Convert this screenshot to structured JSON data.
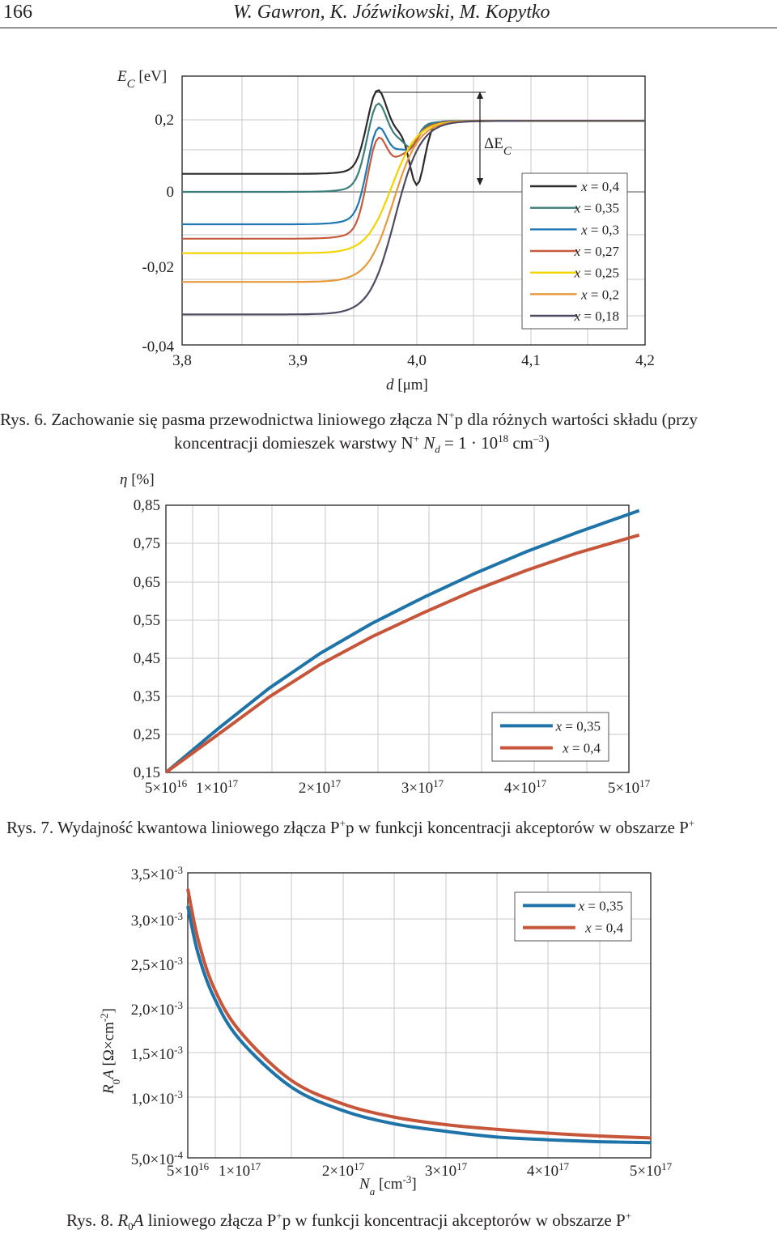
{
  "header": {
    "page_number": "166",
    "authors": "W. Gawron, K. Jóźwikowski, M. Kopytko"
  },
  "figure6": {
    "y_label": "E_C [eV]",
    "y_label_main": "E",
    "y_label_sub": "C",
    "y_label_unit": " [eV]",
    "x_label_main": "d",
    "x_label_unit": " [μm]",
    "delta_label_main": "ΔE",
    "delta_label_sub": "C",
    "caption_lead": "Rys. 6.",
    "caption_line1": "Zachowanie się pasma przewodnictwa liniowego złącza N",
    "caption_sup1": "+",
    "caption_line1b": "p dla różnych wartości składu (przy",
    "caption_line2": "koncentracji domieszek warstwy N",
    "caption_sup2": "+",
    "caption_line2b": " N",
    "caption_sub_d": "d",
    "caption_line2c": " = 1 · 10",
    "caption_sup3": "18",
    "caption_line2d": " cm",
    "caption_sup4": "–3",
    "caption_line2e": ")"
  },
  "figure7": {
    "y_label_main": "η",
    "y_label_unit": " [%]",
    "caption_lead": "Rys. 7.",
    "caption_text": "Wydajność kwantowa liniowego złącza P",
    "caption_sup1": "+",
    "caption_text2": "p w funkcji koncentracji akceptorów w obszarze P",
    "caption_sup2": "+"
  },
  "figure8": {
    "y_label": "R0A [Ω×cm-2]",
    "x_label": "Na [cm-3]",
    "caption_lead": "Rys. 8.",
    "caption_R": "R",
    "caption_sub0": "0",
    "caption_A": "A",
    "caption_text": " liniowego złącza P",
    "caption_sup1": "+",
    "caption_text2": "p w funkcji koncentracji akceptorów w obszarze P",
    "caption_sup2": "+"
  },
  "chart_data": [
    {
      "type": "line",
      "ylabel": "E_C [eV]",
      "xlabel": "d [μm]",
      "xlim": [
        3.8,
        4.2
      ],
      "x_ticks": [
        "3,8",
        "3,9",
        "4,0",
        "4,1",
        "4,2"
      ],
      "y_ticks": [
        "0,2",
        "0",
        "-0,02",
        "-0,04"
      ],
      "annotation": "ΔE_C",
      "grid": true,
      "legend": "right",
      "series": [
        {
          "name": "x = 0,4",
          "color": "#2b2b2b",
          "plateau_left": 0.005,
          "peak": 0.025,
          "dip": 0.003,
          "plateau_right": 0.02
        },
        {
          "name": "x = 0,35",
          "color": "#3d7f7b",
          "plateau_left": 0.0,
          "peak": 0.02
        },
        {
          "name": "x = 0,3",
          "color": "#1f77b4",
          "plateau_left": -0.009,
          "peak": 0.011
        },
        {
          "name": "x = 0,27",
          "color": "#c55a3c",
          "plateau_left": -0.013,
          "peak": 0.008
        },
        {
          "name": "x = 0,25",
          "color": "#f2d400",
          "plateau_left": -0.017
        },
        {
          "name": "x = 0,2",
          "color": "#e89a3b",
          "plateau_left": -0.025
        },
        {
          "name": "x = 0,18",
          "color": "#4e4a63",
          "plateau_left": -0.034
        }
      ]
    },
    {
      "type": "line",
      "ylabel": "η [%]",
      "x_ticks": [
        "5×10¹⁶",
        "1×10¹⁷",
        "2×10¹⁷",
        "3×10¹⁷",
        "4×10¹⁷",
        "5×10¹⁷"
      ],
      "y_ticks": [
        "0,85",
        "0,75",
        "0,65",
        "0,55",
        "0,45",
        "0,35",
        "0,25",
        "0,15"
      ],
      "ylim": [
        0.15,
        0.85
      ],
      "grid": true,
      "legend": "bottom-right",
      "x": [
        5e+16,
        1e+17,
        1.5e+17,
        2e+17,
        2.5e+17,
        3e+17,
        3.5e+17,
        4e+17,
        4.5e+17,
        5.1e+17
      ],
      "series": [
        {
          "name": "x = 0,35",
          "color": "#1e74a8",
          "values": [
            0.15,
            0.263,
            0.37,
            0.462,
            0.54,
            0.608,
            0.671,
            0.728,
            0.779,
            0.836
          ]
        },
        {
          "name": "x = 0,4",
          "color": "#c6553a",
          "values": [
            0.15,
            0.248,
            0.347,
            0.433,
            0.505,
            0.568,
            0.627,
            0.679,
            0.725,
            0.772
          ]
        }
      ]
    },
    {
      "type": "line",
      "ylabel": "R0A [Ω×cm-2]",
      "xlabel": "Na [cm-3]",
      "x_ticks": [
        "5×10¹⁶",
        "1×10¹⁷",
        "2×10¹⁷",
        "3×10¹⁷",
        "4×10¹⁷",
        "5×10¹⁷"
      ],
      "y_ticks": [
        "3,5×10⁻³",
        "3,0×10⁻³",
        "2,5×10⁻³",
        "2,0×10⁻³",
        "1,5×10⁻³",
        "1,0×10⁻³",
        "5,0×10⁻⁴"
      ],
      "ylim": [
        0.0005,
        0.0035
      ],
      "grid": true,
      "legend": "top-right",
      "x": [
        5e+16,
        6e+16,
        7.5e+16,
        1e+17,
        1.5e+17,
        2e+17,
        2.5e+17,
        3e+17,
        3.5e+17,
        4e+17,
        4.5e+17,
        5e+17
      ],
      "series": [
        {
          "name": "x = 0,35",
          "color": "#1e74a8",
          "values": [
            0.00315,
            0.00265,
            0.0022,
            0.00175,
            0.00125,
            0.001,
            0.00086,
            0.00078,
            0.00072,
            0.00069,
            0.00067,
            0.00066
          ]
        },
        {
          "name": "x = 0,4",
          "color": "#c6553a",
          "values": [
            0.00333,
            0.0028,
            0.0023,
            0.00184,
            0.00132,
            0.00107,
            0.00093,
            0.00085,
            0.0008,
            0.00076,
            0.00073,
            0.00071
          ]
        }
      ]
    }
  ]
}
